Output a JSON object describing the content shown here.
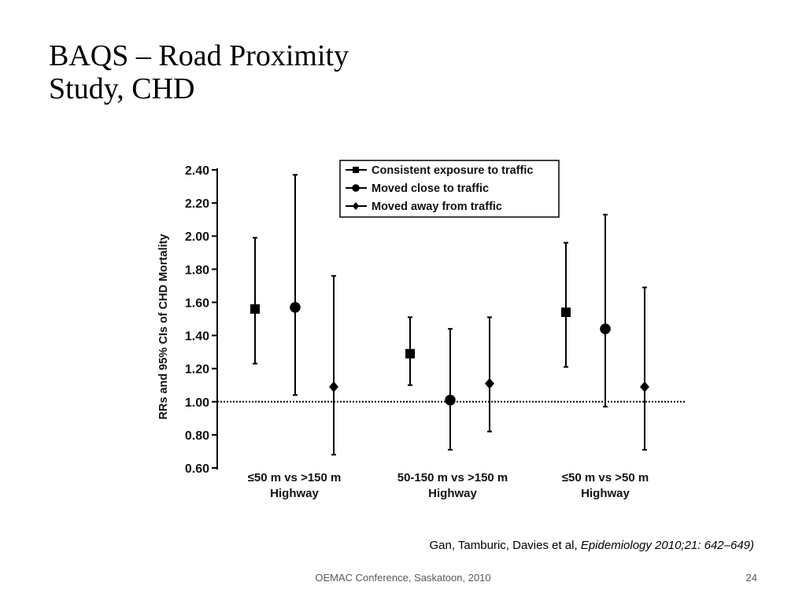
{
  "slide": {
    "title_line1": "BAQS – Road Proximity",
    "title_line2": "Study, CHD",
    "citation_authors": "Gan, Tamburic, Davies et al, ",
    "citation_journal": "Epidemiology 2010;21: 642–649)",
    "footer": "OEMAC Conference, Saskatoon, 2010",
    "slide_number": "24"
  },
  "chart_data": {
    "type": "scatter",
    "title": "",
    "xlabel": "",
    "ylabel": "RRs and 95% CIs of CHD Mortality",
    "ylim": [
      0.6,
      2.4
    ],
    "yticks": [
      0.6,
      0.8,
      1.0,
      1.2,
      1.4,
      1.6,
      1.8,
      2.0,
      2.2,
      2.4
    ],
    "ytick_labels": [
      "0.60",
      "0.80",
      "1.00",
      "1.20",
      "1.40",
      "1.60",
      "1.80",
      "2.00",
      "2.20",
      "2.40"
    ],
    "reference_line": {
      "y": 1.0,
      "style": "dotted"
    },
    "legend_position": "top-right",
    "categories": [
      [
        "≤50 m vs >150 m",
        "Highway"
      ],
      [
        "50-150 m vs >150 m",
        "Highway"
      ],
      [
        "≤50 m vs >50 m",
        "Highway"
      ]
    ],
    "series": [
      {
        "name": "Consistent exposure to traffic",
        "marker": "square",
        "points": [
          {
            "rr": 1.56,
            "lower": 1.23,
            "upper": 1.99
          },
          {
            "rr": 1.29,
            "lower": 1.1,
            "upper": 1.51
          },
          {
            "rr": 1.54,
            "lower": 1.21,
            "upper": 1.96
          }
        ]
      },
      {
        "name": "Moved close to traffic",
        "marker": "circle",
        "points": [
          {
            "rr": 1.57,
            "lower": 1.04,
            "upper": 2.37
          },
          {
            "rr": 1.01,
            "lower": 0.71,
            "upper": 1.44
          },
          {
            "rr": 1.44,
            "lower": 0.97,
            "upper": 2.13
          }
        ]
      },
      {
        "name": "Moved away from traffic",
        "marker": "diamond",
        "points": [
          {
            "rr": 1.09,
            "lower": 0.68,
            "upper": 1.76
          },
          {
            "rr": 1.11,
            "lower": 0.82,
            "upper": 1.51
          },
          {
            "rr": 1.09,
            "lower": 0.71,
            "upper": 1.69
          }
        ]
      }
    ]
  }
}
